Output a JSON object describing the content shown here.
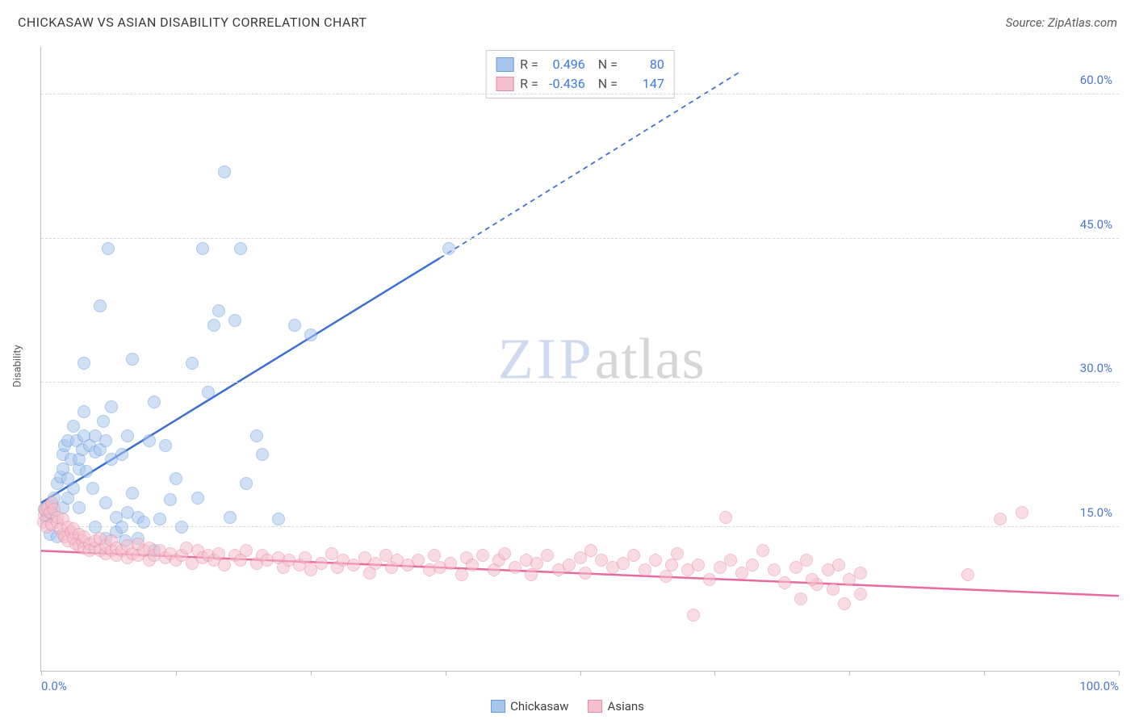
{
  "header": {
    "title": "CHICKASAW VS ASIAN DISABILITY CORRELATION CHART",
    "source": "Source: ZipAtlas.com"
  },
  "chart": {
    "type": "scatter",
    "ylabel": "Disability",
    "background_color": "#ffffff",
    "grid_color": "#d8d8d8",
    "axis_color": "#bfbfbf",
    "tick_label_color": "#4a77d4",
    "tick_fontsize": 15,
    "xlim": [
      0,
      100
    ],
    "ylim": [
      0,
      65
    ],
    "yticks": [
      15.0,
      30.0,
      45.0,
      60.0
    ],
    "ytick_labels": [
      "15.0%",
      "30.0%",
      "45.0%",
      "60.0%"
    ],
    "xticks": [
      0,
      12.5,
      25,
      37.5,
      50,
      62.5,
      75,
      87.5,
      100
    ],
    "xtick_labels": {
      "0": "0.0%",
      "100": "100.0%"
    },
    "watermark": {
      "part1": "ZIP",
      "part2": "atlas"
    },
    "point_radius": 8,
    "point_opacity": 0.55,
    "series": [
      {
        "name": "Chickasaw",
        "fill_color": "#a8c6ec",
        "stroke_color": "#6a9be0",
        "R": "0.496",
        "N": "80",
        "trend": {
          "color": "#3b6fd6",
          "width": 2.5,
          "x1": 0,
          "y1": 17.5,
          "x_solid_end": 37,
          "y_solid_end": 43,
          "x2": 65,
          "y2": 62.5,
          "dash": "6,5"
        },
        "points": [
          [
            0.3,
            16.8
          ],
          [
            0.5,
            15.8
          ],
          [
            0.6,
            16.2
          ],
          [
            0.8,
            14.2
          ],
          [
            1.0,
            16.5
          ],
          [
            1.0,
            17.2
          ],
          [
            1.2,
            18.0
          ],
          [
            1.5,
            14.0
          ],
          [
            1.5,
            19.5
          ],
          [
            1.8,
            20.2
          ],
          [
            2.0,
            17.0
          ],
          [
            2.0,
            21.0
          ],
          [
            2.0,
            22.5
          ],
          [
            2.2,
            23.5
          ],
          [
            2.5,
            18.0
          ],
          [
            2.5,
            20.0
          ],
          [
            2.5,
            24.0
          ],
          [
            2.8,
            22.0
          ],
          [
            3.0,
            19.0
          ],
          [
            3.0,
            25.5
          ],
          [
            3.3,
            24.0
          ],
          [
            3.5,
            17.0
          ],
          [
            3.5,
            21.0
          ],
          [
            3.5,
            22.0
          ],
          [
            3.8,
            23.0
          ],
          [
            4.0,
            24.5
          ],
          [
            4.0,
            27.0
          ],
          [
            4.0,
            32.0
          ],
          [
            4.2,
            20.8
          ],
          [
            4.5,
            23.5
          ],
          [
            4.8,
            19.0
          ],
          [
            5.0,
            15.0
          ],
          [
            5.0,
            22.8
          ],
          [
            5.0,
            24.5
          ],
          [
            5.5,
            23.0
          ],
          [
            5.5,
            38.0
          ],
          [
            5.8,
            26.0
          ],
          [
            6.0,
            13.8
          ],
          [
            6.0,
            17.5
          ],
          [
            6.0,
            24.0
          ],
          [
            6.5,
            22.0
          ],
          [
            6.5,
            27.5
          ],
          [
            7.0,
            14.5
          ],
          [
            7.0,
            16.0
          ],
          [
            7.5,
            15.0
          ],
          [
            7.5,
            22.5
          ],
          [
            7.8,
            13.5
          ],
          [
            8.0,
            16.5
          ],
          [
            8.0,
            24.5
          ],
          [
            8.5,
            18.5
          ],
          [
            8.5,
            32.5
          ],
          [
            9.0,
            16.0
          ],
          [
            9.0,
            13.8
          ],
          [
            9.5,
            15.5
          ],
          [
            10.0,
            24.0
          ],
          [
            10.5,
            12.5
          ],
          [
            10.5,
            28.0
          ],
          [
            11.0,
            15.8
          ],
          [
            11.5,
            23.5
          ],
          [
            12.0,
            17.8
          ],
          [
            12.5,
            20.0
          ],
          [
            13.0,
            15.0
          ],
          [
            14.0,
            32.0
          ],
          [
            14.5,
            18.0
          ],
          [
            15.0,
            44.0
          ],
          [
            15.5,
            29.0
          ],
          [
            16.0,
            36.0
          ],
          [
            16.5,
            37.5
          ],
          [
            17.0,
            52.0
          ],
          [
            17.5,
            16.0
          ],
          [
            18.0,
            36.5
          ],
          [
            18.5,
            44.0
          ],
          [
            19.0,
            19.5
          ],
          [
            20.0,
            24.5
          ],
          [
            20.5,
            22.5
          ],
          [
            22.0,
            15.8
          ],
          [
            23.5,
            36.0
          ],
          [
            25.0,
            35.0
          ],
          [
            37.8,
            44.0
          ],
          [
            6.2,
            44.0
          ]
        ]
      },
      {
        "name": "Asians",
        "fill_color": "#f5c0cd",
        "stroke_color": "#e88ba6",
        "R": "-0.436",
        "N": "147",
        "trend": {
          "color": "#e86aa0",
          "width": 2.5,
          "x1": 0,
          "y1": 12.5,
          "x_solid_end": 100,
          "y_solid_end": 7.8,
          "x2": 100,
          "y2": 7.8,
          "dash": ""
        },
        "points": [
          [
            0.2,
            15.5
          ],
          [
            0.3,
            16.2
          ],
          [
            0.4,
            16.8
          ],
          [
            0.5,
            15.0
          ],
          [
            0.6,
            17.0
          ],
          [
            0.8,
            16.5
          ],
          [
            1.0,
            15.2
          ],
          [
            1.0,
            17.5
          ],
          [
            1.2,
            16.8
          ],
          [
            1.5,
            15.5
          ],
          [
            1.5,
            16.0
          ],
          [
            1.8,
            14.8
          ],
          [
            2.0,
            14.2
          ],
          [
            2.0,
            15.8
          ],
          [
            2.2,
            14.0
          ],
          [
            2.5,
            13.5
          ],
          [
            2.5,
            15.0
          ],
          [
            2.8,
            14.5
          ],
          [
            3.0,
            13.8
          ],
          [
            3.0,
            14.8
          ],
          [
            3.2,
            13.2
          ],
          [
            3.5,
            13.0
          ],
          [
            3.5,
            14.2
          ],
          [
            3.8,
            13.5
          ],
          [
            4.0,
            12.8
          ],
          [
            4.0,
            14.0
          ],
          [
            4.5,
            13.2
          ],
          [
            4.5,
            12.5
          ],
          [
            5.0,
            12.8
          ],
          [
            5.0,
            13.5
          ],
          [
            5.5,
            12.5
          ],
          [
            5.5,
            13.8
          ],
          [
            6.0,
            12.2
          ],
          [
            6.0,
            13.0
          ],
          [
            6.5,
            12.5
          ],
          [
            6.5,
            13.5
          ],
          [
            7.0,
            12.0
          ],
          [
            7.0,
            12.8
          ],
          [
            7.5,
            12.5
          ],
          [
            8.0,
            11.8
          ],
          [
            8.0,
            13.0
          ],
          [
            8.5,
            12.2
          ],
          [
            9.0,
            12.0
          ],
          [
            9.0,
            13.2
          ],
          [
            9.5,
            12.5
          ],
          [
            10.0,
            11.5
          ],
          [
            10.0,
            12.8
          ],
          [
            10.5,
            12.0
          ],
          [
            11.0,
            12.5
          ],
          [
            11.5,
            11.8
          ],
          [
            12.0,
            12.2
          ],
          [
            12.5,
            11.5
          ],
          [
            13.0,
            12.0
          ],
          [
            13.5,
            12.8
          ],
          [
            14.0,
            11.2
          ],
          [
            14.5,
            12.5
          ],
          [
            15.0,
            11.8
          ],
          [
            15.5,
            12.0
          ],
          [
            16.0,
            11.5
          ],
          [
            16.5,
            12.2
          ],
          [
            17.0,
            11.0
          ],
          [
            18.0,
            12.0
          ],
          [
            18.5,
            11.5
          ],
          [
            19.0,
            12.5
          ],
          [
            20.0,
            11.2
          ],
          [
            20.5,
            12.0
          ],
          [
            21.0,
            11.5
          ],
          [
            22.0,
            11.8
          ],
          [
            22.5,
            10.8
          ],
          [
            23.0,
            11.5
          ],
          [
            24.0,
            11.0
          ],
          [
            24.5,
            11.8
          ],
          [
            25.0,
            10.5
          ],
          [
            26.0,
            11.2
          ],
          [
            27.0,
            12.2
          ],
          [
            27.5,
            10.8
          ],
          [
            28.0,
            11.5
          ],
          [
            29.0,
            11.0
          ],
          [
            30.0,
            11.8
          ],
          [
            30.5,
            10.2
          ],
          [
            31.0,
            11.2
          ],
          [
            32.0,
            12.0
          ],
          [
            32.5,
            10.8
          ],
          [
            33.0,
            11.5
          ],
          [
            34.0,
            11.0
          ],
          [
            35.0,
            11.5
          ],
          [
            36.0,
            10.5
          ],
          [
            36.5,
            12.0
          ],
          [
            37.0,
            10.8
          ],
          [
            38.0,
            11.2
          ],
          [
            39.0,
            10.0
          ],
          [
            39.5,
            11.8
          ],
          [
            40.0,
            11.0
          ],
          [
            41.0,
            12.0
          ],
          [
            42.0,
            10.5
          ],
          [
            42.5,
            11.5
          ],
          [
            43.0,
            12.2
          ],
          [
            44.0,
            10.8
          ],
          [
            45.0,
            11.5
          ],
          [
            45.5,
            10.0
          ],
          [
            46.0,
            11.2
          ],
          [
            47.0,
            12.0
          ],
          [
            48.0,
            10.5
          ],
          [
            49.0,
            11.0
          ],
          [
            50.0,
            11.8
          ],
          [
            50.5,
            10.2
          ],
          [
            51.0,
            12.5
          ],
          [
            52.0,
            11.5
          ],
          [
            53.0,
            10.8
          ],
          [
            54.0,
            11.2
          ],
          [
            55.0,
            12.0
          ],
          [
            56.0,
            10.5
          ],
          [
            57.0,
            11.5
          ],
          [
            58.0,
            9.8
          ],
          [
            58.5,
            11.0
          ],
          [
            59.0,
            12.2
          ],
          [
            60.0,
            10.5
          ],
          [
            61.0,
            11.0
          ],
          [
            62.0,
            9.5
          ],
          [
            63.0,
            10.8
          ],
          [
            64.0,
            11.5
          ],
          [
            65.0,
            10.2
          ],
          [
            66.0,
            11.0
          ],
          [
            67.0,
            12.5
          ],
          [
            68.0,
            10.5
          ],
          [
            69.0,
            9.2
          ],
          [
            70.0,
            10.8
          ],
          [
            71.0,
            11.5
          ],
          [
            72.0,
            9.0
          ],
          [
            73.0,
            10.5
          ],
          [
            74.0,
            11.0
          ],
          [
            75.0,
            9.5
          ],
          [
            76.0,
            10.2
          ],
          [
            63.5,
            16.0
          ],
          [
            60.5,
            5.8
          ],
          [
            70.5,
            7.5
          ],
          [
            71.5,
            9.5
          ],
          [
            73.5,
            8.5
          ],
          [
            74.5,
            7.0
          ],
          [
            76.0,
            8.0
          ],
          [
            86.0,
            10.0
          ],
          [
            89.0,
            15.8
          ],
          [
            91.0,
            16.5
          ]
        ]
      }
    ],
    "legend_bottom": [
      {
        "label": "Chickasaw",
        "fill": "#a8c6ec",
        "stroke": "#6a9be0"
      },
      {
        "label": "Asians",
        "fill": "#f5c0cd",
        "stroke": "#e88ba6"
      }
    ]
  }
}
